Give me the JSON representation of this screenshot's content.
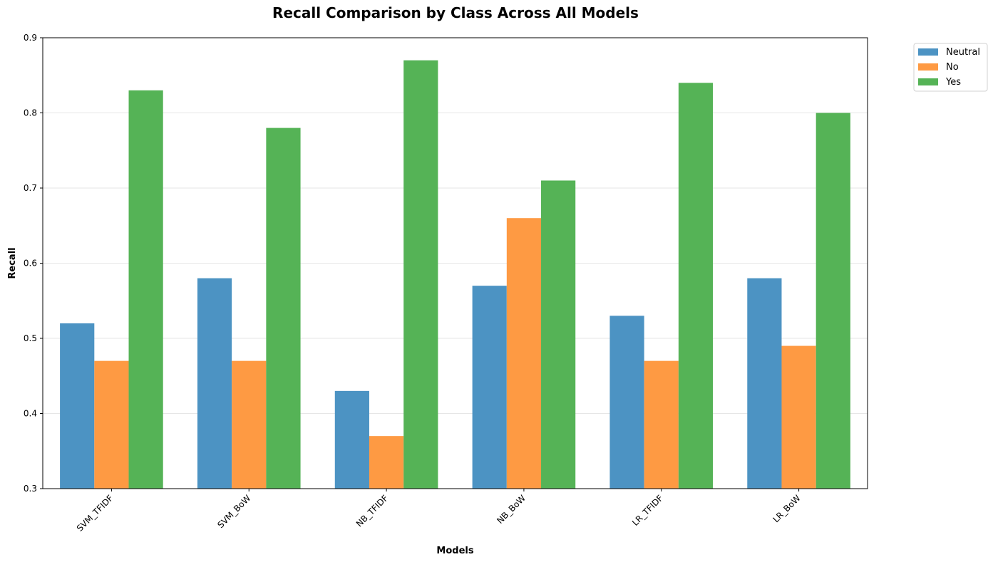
{
  "chart_data": {
    "type": "bar",
    "title": "Recall Comparison by Class Across All Models",
    "xlabel": "Models",
    "ylabel": "Recall",
    "ylim": [
      0.3,
      0.9
    ],
    "yticks": [
      "0.3",
      "0.4",
      "0.5",
      "0.6",
      "0.7",
      "0.8",
      "0.9"
    ],
    "grid": true,
    "legend_position": "outside-top-right",
    "categories": [
      "SVM_TFIDF",
      "SVM_BoW",
      "NB_TFIDF",
      "NB_BoW",
      "LR_TFIDF",
      "LR_BoW"
    ],
    "series": [
      {
        "name": "Neutral",
        "color": "#4c93c3",
        "values": [
          0.52,
          0.58,
          0.43,
          0.57,
          0.53,
          0.58
        ]
      },
      {
        "name": "No",
        "color": "#fe9a43",
        "values": [
          0.47,
          0.47,
          0.37,
          0.66,
          0.47,
          0.49
        ]
      },
      {
        "name": "Yes",
        "color": "#55b356",
        "values": [
          0.83,
          0.78,
          0.87,
          0.71,
          0.84,
          0.8
        ]
      }
    ]
  }
}
